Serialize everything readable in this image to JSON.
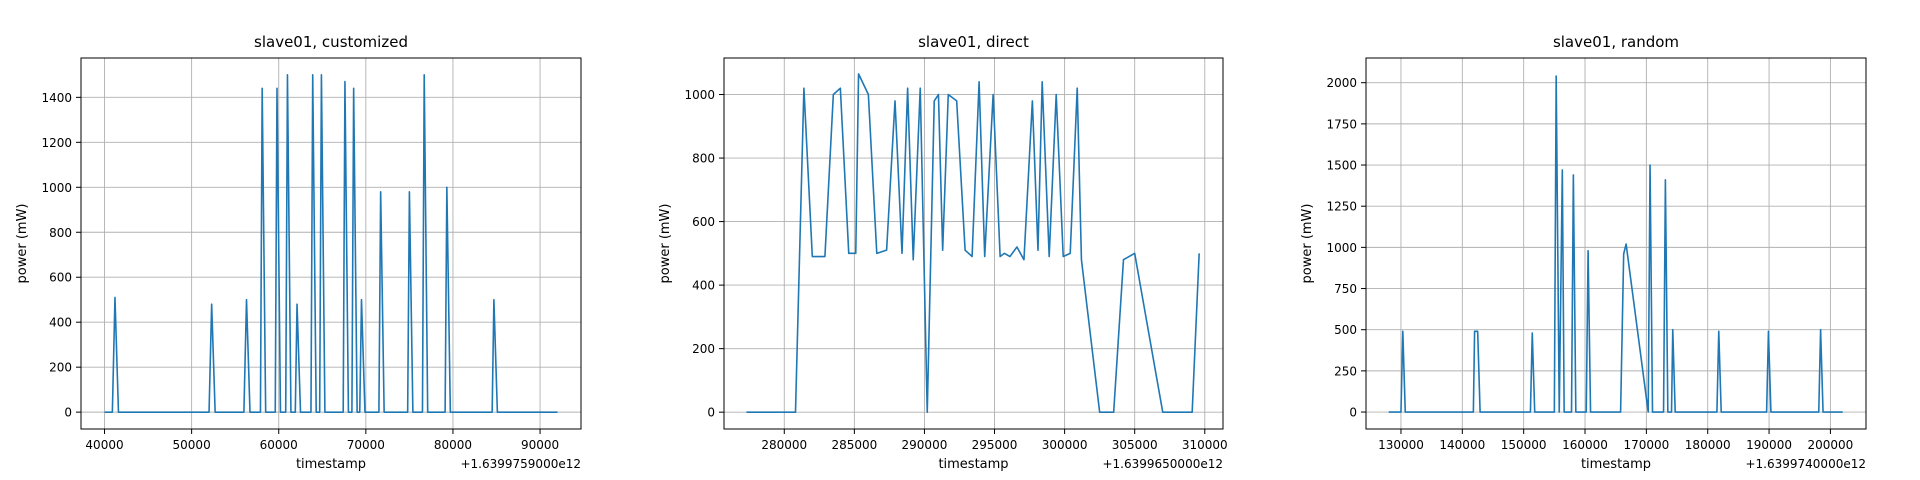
{
  "chart_data": [
    {
      "type": "line",
      "title": "slave01, customized",
      "xlabel": "timestamp",
      "ylabel": "power (mW)",
      "x_offset_text": "+1.6399759000e12",
      "xlim": [
        37300,
        94700
      ],
      "ylim": [
        -75,
        1575
      ],
      "xticks": [
        40000,
        50000,
        60000,
        70000,
        80000,
        90000
      ],
      "yticks": [
        0,
        200,
        400,
        600,
        800,
        1000,
        1200,
        1400
      ],
      "grid": true,
      "color": "#1f77b4",
      "series": [
        {
          "x": [
            40000,
            40900,
            41200,
            41600,
            46000,
            52000,
            52300,
            52700,
            56000,
            56300,
            56700,
            57900,
            58100,
            58500,
            59600,
            59800,
            60200,
            60800,
            61000,
            61400,
            61900,
            62100,
            62500,
            63700,
            63900,
            64300,
            64700,
            64900,
            65300,
            67400,
            67600,
            68000,
            68400,
            68600,
            69000,
            69300,
            69500,
            69900,
            71500,
            71700,
            72100,
            74800,
            75000,
            75400,
            76500,
            76700,
            77100,
            79100,
            79300,
            79700,
            84500,
            84700,
            85100,
            92000
          ],
          "y": [
            0,
            0,
            510,
            0,
            0,
            0,
            480,
            0,
            0,
            500,
            0,
            0,
            1440,
            0,
            0,
            1440,
            0,
            0,
            1500,
            0,
            0,
            480,
            0,
            0,
            1500,
            0,
            0,
            1500,
            0,
            0,
            1470,
            0,
            0,
            1440,
            0,
            0,
            500,
            0,
            0,
            980,
            0,
            0,
            980,
            0,
            0,
            1500,
            0,
            0,
            1000,
            0,
            0,
            500,
            0,
            0
          ]
        }
      ]
    },
    {
      "type": "line",
      "title": "slave01, direct",
      "xlabel": "timestamp",
      "ylabel": "power (mW)",
      "x_offset_text": "+1.6399650000e12",
      "xlim": [
        275700,
        311300
      ],
      "ylim": [
        -53,
        1115
      ],
      "xticks": [
        280000,
        285000,
        290000,
        295000,
        300000,
        305000,
        310000
      ],
      "yticks": [
        0,
        200,
        400,
        600,
        800,
        1000
      ],
      "grid": true,
      "color": "#1f77b4",
      "series": [
        {
          "x": [
            277300,
            280800,
            281400,
            282000,
            282900,
            283500,
            284000,
            284600,
            285100,
            285300,
            286000,
            286600,
            287300,
            287900,
            288400,
            288800,
            289200,
            289700,
            290200,
            290700,
            291000,
            291300,
            291700,
            292300,
            292900,
            293400,
            293900,
            294300,
            294900,
            295400,
            295700,
            296100,
            296600,
            297100,
            297700,
            298100,
            298400,
            298900,
            299400,
            299900,
            300400,
            300900,
            301200,
            302500,
            303500,
            304200,
            305000,
            307000,
            309100,
            309600
          ],
          "y": [
            0,
            0,
            1020,
            490,
            490,
            1000,
            1020,
            500,
            500,
            1065,
            1000,
            500,
            510,
            980,
            500,
            1020,
            480,
            1020,
            0,
            980,
            1000,
            510,
            1000,
            980,
            510,
            490,
            1040,
            490,
            1000,
            490,
            500,
            490,
            520,
            480,
            980,
            510,
            1040,
            490,
            1000,
            490,
            500,
            1020,
            480,
            0,
            0,
            480,
            500,
            0,
            0,
            500
          ]
        }
      ]
    },
    {
      "type": "line",
      "title": "slave01, random",
      "xlabel": "timestamp",
      "ylabel": "power (mW)",
      "x_offset_text": "+1.6399740000e12",
      "xlim": [
        124300,
        205800
      ],
      "ylim": [
        -103,
        2150
      ],
      "xticks": [
        130000,
        140000,
        150000,
        160000,
        170000,
        180000,
        190000,
        200000
      ],
      "yticks": [
        0,
        250,
        500,
        750,
        1000,
        1250,
        1500,
        1750,
        2000
      ],
      "grid": true,
      "color": "#1f77b4",
      "series": [
        {
          "x": [
            128000,
            130000,
            130300,
            130700,
            141800,
            142000,
            142500,
            142900,
            151100,
            151400,
            151800,
            155000,
            155300,
            155800,
            156300,
            156600,
            157100,
            157800,
            158100,
            158500,
            160200,
            160500,
            160900,
            165800,
            166300,
            166700,
            170300,
            170600,
            171000,
            172800,
            173100,
            173500,
            174100,
            174300,
            174700,
            181500,
            181800,
            182200,
            189600,
            189900,
            190300,
            198100,
            198400,
            198800,
            202000
          ],
          "y": [
            0,
            0,
            490,
            0,
            0,
            490,
            490,
            0,
            0,
            480,
            0,
            0,
            2040,
            0,
            1470,
            0,
            0,
            0,
            1440,
            0,
            0,
            980,
            0,
            0,
            960,
            1020,
            0,
            1500,
            0,
            0,
            1410,
            0,
            0,
            500,
            0,
            0,
            490,
            0,
            0,
            490,
            0,
            0,
            500,
            0,
            0
          ]
        }
      ]
    }
  ]
}
